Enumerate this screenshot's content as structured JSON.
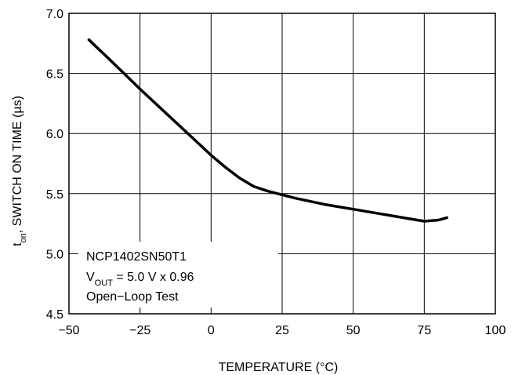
{
  "chart_data": {
    "type": "line",
    "title": "",
    "xlabel": "TEMPERATURE (°C)",
    "ylabel_prefix": "t",
    "ylabel_sub": "on",
    "ylabel_rest": ", SWITCH ON TIME (µs)",
    "xlim": [
      -50,
      100
    ],
    "ylim": [
      4.5,
      7.0
    ],
    "x_ticks": [
      -50,
      -25,
      0,
      25,
      50,
      75,
      100
    ],
    "x_tick_labels": [
      "−50",
      "−25",
      "0",
      "25",
      "50",
      "75",
      "100"
    ],
    "y_ticks": [
      4.5,
      5.0,
      5.5,
      6.0,
      6.5,
      7.0
    ],
    "y_tick_labels": [
      "4.5",
      "5.0",
      "5.5",
      "6.0",
      "6.5",
      "7.0"
    ],
    "grid": true,
    "series": [
      {
        "x": [
          -43,
          -35,
          -25,
          -15,
          -5,
          0,
          5,
          10,
          15,
          20,
          25,
          30,
          40,
          50,
          60,
          70,
          75,
          80,
          83
        ],
        "y": [
          6.78,
          6.6,
          6.37,
          6.15,
          5.93,
          5.82,
          5.72,
          5.63,
          5.56,
          5.52,
          5.49,
          5.46,
          5.41,
          5.37,
          5.33,
          5.29,
          5.27,
          5.28,
          5.3
        ]
      }
    ],
    "annotations": {
      "line1": "NCP1402SN50T1",
      "line2_prefix": "V",
      "line2_sub": "OUT",
      "line2_rest": " = 5.0 V x 0.96",
      "line3": "Open−Loop Test"
    }
  }
}
